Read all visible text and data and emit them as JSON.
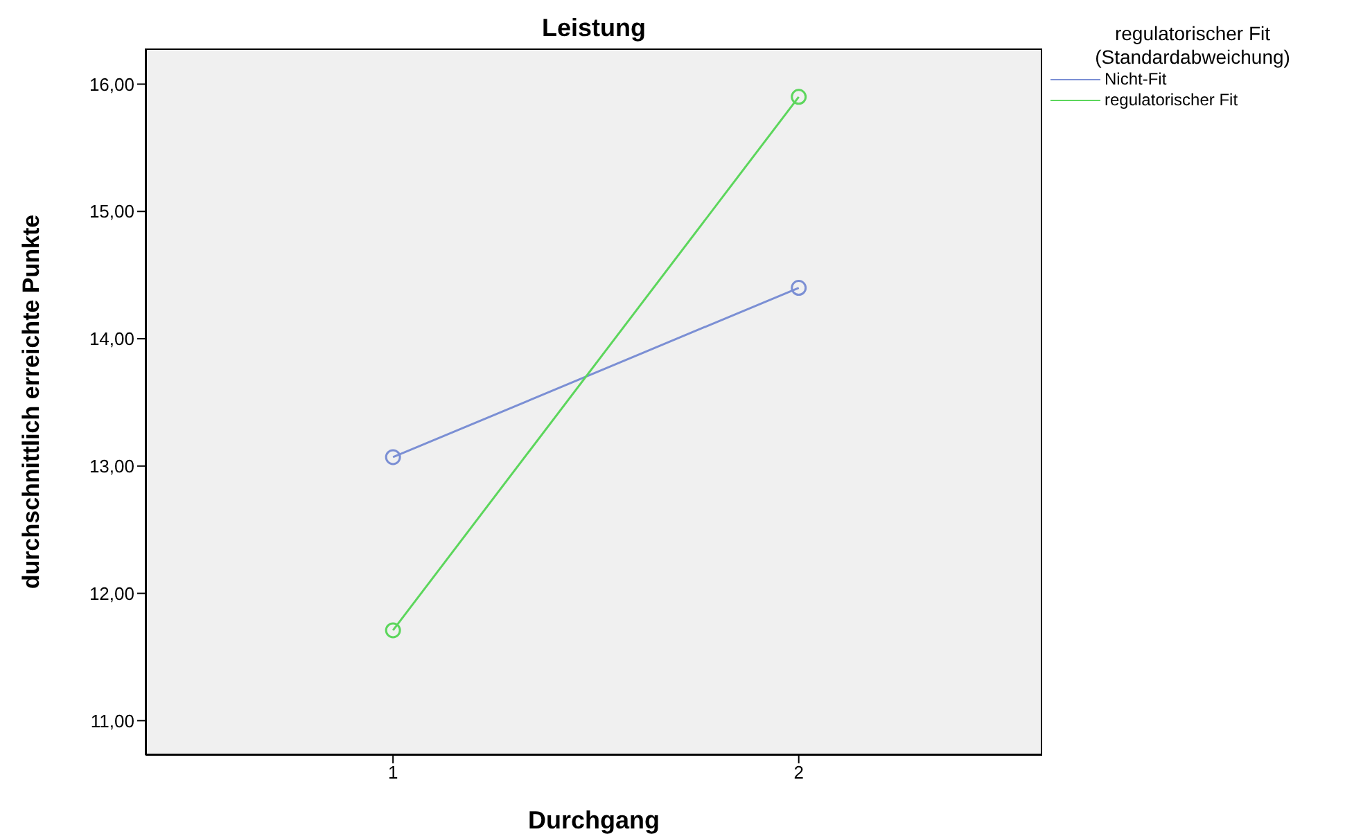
{
  "chart_data": {
    "type": "line",
    "title": "Leistung",
    "xlabel": "Durchgang",
    "ylabel": "durchschnittlich erreichte Punkte",
    "legend_title": "regulatorischer Fit (Standardabweichung)",
    "legend": "top right",
    "marker": "circle",
    "x": [
      1,
      2
    ],
    "series": [
      {
        "name": "Nicht-Fit",
        "color": "#7b8fd4",
        "values": [
          13.07,
          14.4
        ]
      },
      {
        "name": "regulatorischer Fit",
        "color": "#5cd65c",
        "values": [
          11.71,
          15.9
        ]
      }
    ],
    "xlim": [
      0.39,
      2.6
    ],
    "xticks": [
      1,
      2
    ],
    "ylim": [
      10.73,
      16.28
    ],
    "yticks": [
      {
        "value": 11,
        "label": "11,00"
      },
      {
        "value": 12,
        "label": "12,00"
      },
      {
        "value": 13,
        "label": "13,00"
      },
      {
        "value": 14,
        "label": "14,00"
      },
      {
        "value": 15,
        "label": "15,00"
      },
      {
        "value": 16,
        "label": "16,00"
      }
    ]
  }
}
